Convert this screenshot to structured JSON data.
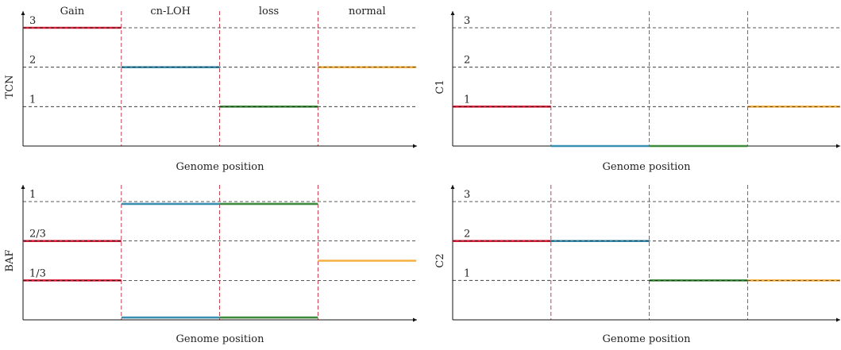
{
  "segment_labels": [
    "Gain",
    "cn-LOH",
    "loss",
    "normal"
  ],
  "colors": {
    "Gain": "#d6223a",
    "cn-LOH": "#3a8fb0",
    "loss": "#3e8a3c",
    "normal": "#f5b041",
    "boundary": "#c0283a",
    "grid": "#222222"
  },
  "chart_data": [
    {
      "id": "tcn",
      "type": "line",
      "ylabel": "TCN",
      "xlabel": "Genome position",
      "ylim": [
        0,
        3
      ],
      "yticks": [
        {
          "v": 3,
          "t": "3"
        },
        {
          "v": 2,
          "t": "2"
        },
        {
          "v": 1,
          "t": "1"
        }
      ],
      "boundaries": [
        1,
        2,
        3
      ],
      "xlim": [
        0,
        4
      ],
      "segments": [
        {
          "name": "Gain",
          "x": [
            0,
            1
          ],
          "y": 3
        },
        {
          "name": "cn-LOH",
          "x": [
            1,
            2
          ],
          "y": 2
        },
        {
          "name": "loss",
          "x": [
            2,
            3
          ],
          "y": 1
        },
        {
          "name": "normal",
          "x": [
            3,
            4
          ],
          "y": 2
        }
      ]
    },
    {
      "id": "c1",
      "type": "line",
      "ylabel": "C1",
      "xlabel": "Genome position",
      "ylim": [
        0,
        3
      ],
      "yticks": [
        {
          "v": 3,
          "t": "3"
        },
        {
          "v": 2,
          "t": "2"
        },
        {
          "v": 1,
          "t": "1"
        }
      ],
      "boundaries": [
        1,
        2,
        3
      ],
      "xlim": [
        0,
        4
      ],
      "segments": [
        {
          "name": "Gain",
          "x": [
            0,
            1
          ],
          "y": 1
        },
        {
          "name": "cn-LOH",
          "x": [
            1,
            2
          ],
          "y": 0
        },
        {
          "name": "loss",
          "x": [
            2,
            3
          ],
          "y": 0
        },
        {
          "name": "normal",
          "x": [
            3,
            4
          ],
          "y": 1
        }
      ]
    },
    {
      "id": "baf",
      "type": "line",
      "ylabel": "BAF",
      "xlabel": "Genome position",
      "ylim": [
        0,
        1
      ],
      "yticks": [
        {
          "v": 1,
          "t": "1"
        },
        {
          "v": 0.6667,
          "t": "2/3"
        },
        {
          "v": 0.3333,
          "t": "1/3"
        }
      ],
      "boundaries": [
        1,
        2,
        3
      ],
      "xlim": [
        0,
        4
      ],
      "segments": [
        {
          "name": "Gain",
          "x": [
            0,
            1
          ],
          "y": 0.6667
        },
        {
          "name": "Gain",
          "x": [
            0,
            1
          ],
          "y": 0.3333
        },
        {
          "name": "cn-LOH",
          "x": [
            1,
            2
          ],
          "y": 0.98
        },
        {
          "name": "cn-LOH",
          "x": [
            1,
            2
          ],
          "y": 0.02
        },
        {
          "name": "loss",
          "x": [
            2,
            3
          ],
          "y": 0.98
        },
        {
          "name": "loss",
          "x": [
            2,
            3
          ],
          "y": 0.02
        },
        {
          "name": "normal",
          "x": [
            3,
            4
          ],
          "y": 0.5
        }
      ]
    },
    {
      "id": "c2",
      "type": "line",
      "ylabel": "C2",
      "xlabel": "Genome position",
      "ylim": [
        0,
        3
      ],
      "yticks": [
        {
          "v": 3,
          "t": "3"
        },
        {
          "v": 2,
          "t": "2"
        },
        {
          "v": 1,
          "t": "1"
        }
      ],
      "boundaries": [
        1,
        2,
        3
      ],
      "xlim": [
        0,
        4
      ],
      "segments": [
        {
          "name": "Gain",
          "x": [
            0,
            1
          ],
          "y": 2
        },
        {
          "name": "cn-LOH",
          "x": [
            1,
            2
          ],
          "y": 2
        },
        {
          "name": "loss",
          "x": [
            2,
            3
          ],
          "y": 1
        },
        {
          "name": "normal",
          "x": [
            3,
            4
          ],
          "y": 1
        }
      ]
    }
  ]
}
